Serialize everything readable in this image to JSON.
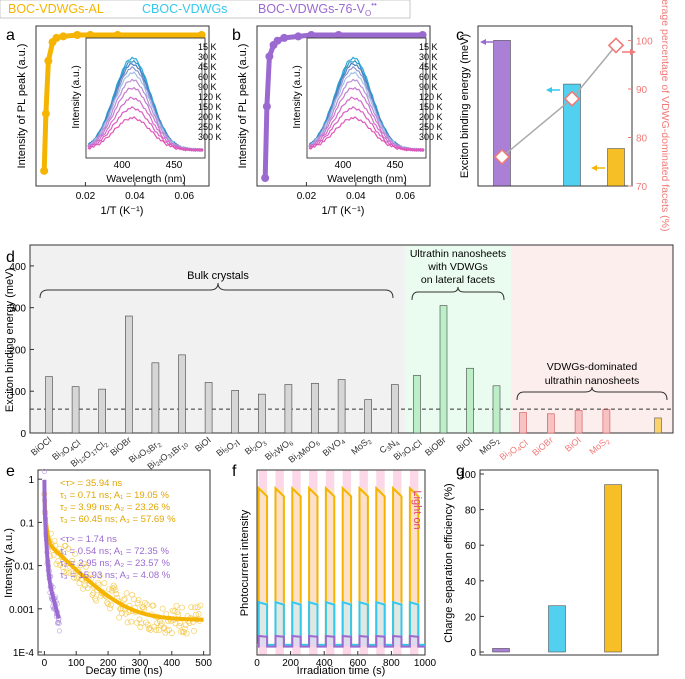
{
  "legend": [
    {
      "label": "BOC-VDWGs-AL",
      "color": "#f5b400"
    },
    {
      "label": "CBOC-VDWGs",
      "color": "#35c8ee"
    },
    {
      "label": "BOC-VDWGs-76-V",
      "sub": "O",
      "sup": "••",
      "color": "#9b6ad0"
    }
  ],
  "colors": {
    "yellow": "#f5b400",
    "cyan": "#35c8ee",
    "purple": "#9b6ad0",
    "gray_fill": "#d6d6d6",
    "green_fill": "#bcefc8",
    "red_fill": "#f8c2c2",
    "red": "#f07a78",
    "axis": "#333333"
  },
  "chart_data": [
    {
      "panel": "a",
      "type": "line",
      "xlabel": "1/T (K⁻¹)",
      "ylabel": "Intensity of PL peak (a.u.)",
      "xticks": [
        "0.02",
        "0.04",
        "0.06"
      ],
      "xlim": [
        0,
        0.07
      ],
      "series": [
        {
          "name": "BOC-VDWGs-AL",
          "x": [
            0.0033,
            0.004,
            0.005,
            0.0067,
            0.0083,
            0.011,
            0.0167,
            0.022,
            0.033,
            0.067
          ],
          "y": [
            0.05,
            0.45,
            0.82,
            0.95,
            0.98,
            0.99,
            1.0,
            1.0,
            1.0,
            1.0
          ]
        }
      ],
      "inset": {
        "xlabel": "Wavelength (nm)",
        "ylabel": "Intensity (a.u.)",
        "xticks": [
          "400",
          "450"
        ],
        "temperatures": [
          "15 K",
          "30 K",
          "45 K",
          "60 K",
          "90 K",
          "120 K",
          "150 K",
          "200 K",
          "250 K",
          "300 K"
        ]
      }
    },
    {
      "panel": "b",
      "type": "line",
      "xlabel": "1/T (K⁻¹)",
      "ylabel": "Intensity of PL peak (a.u.)",
      "xticks": [
        "0.02",
        "0.04",
        "0.06"
      ],
      "xlim": [
        0,
        0.07
      ],
      "series": [
        {
          "name": "BOC-VDWGs-76-Vo",
          "x": [
            0.0033,
            0.004,
            0.005,
            0.0067,
            0.0083,
            0.011,
            0.0167,
            0.022,
            0.033,
            0.067
          ],
          "y": [
            0.0,
            0.5,
            0.85,
            0.93,
            0.96,
            0.98,
            0.99,
            1.0,
            1.0,
            1.0
          ]
        }
      ],
      "inset": {
        "xlabel": "Wavelength (nm)",
        "ylabel": "Intensity (a.u.)",
        "xticks": [
          "400",
          "450"
        ],
        "temperatures": [
          "15 K",
          "30 K",
          "45 K",
          "60 K",
          "90 K",
          "120 K",
          "150 K",
          "200 K",
          "250 K",
          "300 K"
        ]
      }
    },
    {
      "panel": "c",
      "type": "bar",
      "ylabel": "Exciton binding energy (meV)",
      "y2label": "Coverage percentage of VDWG-dominated facets (%)",
      "y2ticks": [
        "70",
        "80",
        "90",
        "100"
      ],
      "y2lim": [
        70,
        103
      ],
      "categories": [
        "BOC-VDWGs-76-Vo",
        "CBOC-VDWGs",
        "BOC-VDWGs-AL"
      ],
      "values": [
        140,
        98,
        36
      ],
      "coverage": [
        76,
        88,
        99
      ]
    },
    {
      "panel": "d",
      "type": "bar",
      "ylabel": "Exciton binding energy (meV)",
      "yticks": [
        "0",
        "100",
        "200",
        "300",
        "400"
      ],
      "ylim": [
        0,
        450
      ],
      "reference_line": 57,
      "groups": [
        {
          "label": "Bulk crystals"
        },
        {
          "label_lines": [
            "Ultrathin nanosheets",
            "with VDWGs",
            "on lateral facets"
          ]
        },
        {
          "label_lines": [
            "VDWGs-dominated",
            "ultrathin nanosheets"
          ]
        }
      ],
      "bulk": {
        "labels": [
          "BiOCl",
          "Bi3O4Cl",
          "Bi12O17Cl2",
          "BiOBr",
          "Bi4O5Br2",
          "Bi24O31Br10",
          "BiOI",
          "Bi5O7I",
          "Bi2O3",
          "Bi2WO6",
          "Bi2MoO6",
          "BiVO4",
          "MoS2",
          "C3N4"
        ],
        "values": [
          135,
          111,
          105,
          280,
          168,
          187,
          121,
          102,
          93,
          116,
          119,
          128,
          80,
          116
        ]
      },
      "nanosheets": {
        "labels": [
          "Bi3O4Cl",
          "BiOBr",
          "BiOI",
          "MoS2"
        ],
        "values": [
          138,
          305,
          155,
          113
        ]
      },
      "vdwg": {
        "labels": [
          "Bi3O4Cl",
          "BiOBr",
          "BiOI",
          "MoS2"
        ],
        "values": [
          49,
          46,
          54,
          56
        ],
        "extra_value": 36
      }
    },
    {
      "panel": "e",
      "type": "scatter",
      "xlabel": "Decay time (ns)",
      "ylabel": "Intensity (a.u.)",
      "xticks": [
        "0",
        "100",
        "200",
        "300",
        "400",
        "500"
      ],
      "xlim": [
        -20,
        520
      ],
      "yticks": [
        "1E-4",
        "0.001",
        "0.01",
        "0.1",
        "1"
      ],
      "ylog": true,
      "annot_yellow": [
        "<τ> = 35.94 ns",
        "τ₁ = 0.71 ns; A₁ = 19.05 %",
        "τ₂ = 3.99 ns; A₂ = 23.26 %",
        "τ₃ = 60.45 ns; A₃ = 57.69 %"
      ],
      "annot_purple": [
        "<τ> = 1.74 ns",
        "τ₁ = 0.54 ns; A₁ = 72.35 %",
        "τ₂ = 2.95 ns; A₂ = 23.57 %",
        "τ₃ = 15.93 ns; A₃ = 4.08 %"
      ]
    },
    {
      "panel": "f",
      "type": "line",
      "xlabel": "Irradiation time (s)",
      "ylabel": "Photocurrent intensity",
      "xticks": [
        "0",
        "200",
        "400",
        "600",
        "800",
        "1000"
      ],
      "xlim": [
        0,
        1000
      ],
      "cycles": 10,
      "light_label": "Light on",
      "series": [
        {
          "name": "BOC-VDWGs-AL",
          "on": 0.92,
          "off": 0.04
        },
        {
          "name": "CBOC-VDWGs",
          "on": 0.28,
          "off": 0.04
        },
        {
          "name": "BOC-VDWGs-76-Vo",
          "on": 0.09,
          "off": 0.03
        }
      ]
    },
    {
      "panel": "g",
      "type": "bar",
      "ylabel": "Charge separation efficiency (%)",
      "yticks": [
        "0",
        "20",
        "40",
        "60",
        "80",
        "100"
      ],
      "ylim": [
        0,
        100
      ],
      "categories": [
        "BOC-VDWGs-76-Vo",
        "CBOC-VDWGs",
        "BOC-VDWGs-AL"
      ],
      "values": [
        2,
        26,
        94
      ]
    }
  ]
}
